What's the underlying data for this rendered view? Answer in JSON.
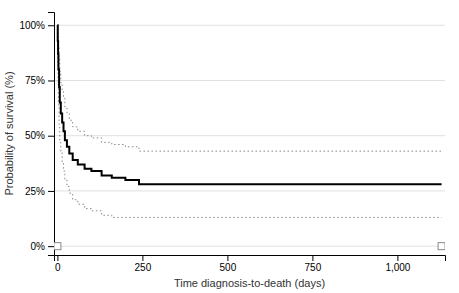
{
  "chart_data": {
    "type": "line",
    "xlabel": "Time diagnosis-to-death (days)",
    "ylabel": "Probability of survival (%)",
    "xlim": [
      -10,
      1140
    ],
    "ylim": [
      -0.04,
      1.06
    ],
    "xticks": [
      0,
      250,
      500,
      750,
      {
        "value": 1000,
        "label": "1,000"
      }
    ],
    "yticks": [
      {
        "value": 0.0,
        "label": "0%"
      },
      {
        "value": 0.25,
        "label": "25%"
      },
      {
        "value": 0.5,
        "label": "50%"
      },
      {
        "value": 0.75,
        "label": "75%"
      },
      {
        "value": 1.0,
        "label": "100%"
      }
    ],
    "grid": "y",
    "x": [
      0,
      1,
      2,
      3,
      5,
      7,
      10,
      14,
      18,
      22,
      28,
      35,
      45,
      60,
      80,
      100,
      130,
      160,
      200,
      240,
      280,
      1130
    ],
    "series": [
      {
        "type": "step",
        "color": "#888888",
        "line_style": "dotted",
        "values": [
          1.0,
          0.98,
          0.95,
          0.91,
          0.85,
          0.79,
          0.74,
          0.7,
          0.67,
          0.63,
          0.6,
          0.57,
          0.54,
          0.52,
          0.5,
          0.49,
          0.47,
          0.46,
          0.45,
          0.43,
          0.43,
          0.43
        ]
      },
      {
        "type": "step",
        "color": "#888888",
        "line_style": "dotted",
        "values": [
          1.0,
          0.83,
          0.73,
          0.64,
          0.55,
          0.48,
          0.43,
          0.38,
          0.34,
          0.3,
          0.27,
          0.24,
          0.21,
          0.19,
          0.17,
          0.16,
          0.14,
          0.13,
          0.13,
          0.13,
          0.13,
          0.13
        ]
      },
      {
        "type": "step",
        "color": "#000000",
        "line_style": "solid",
        "values": [
          1.0,
          0.93,
          0.87,
          0.8,
          0.72,
          0.65,
          0.6,
          0.56,
          0.52,
          0.48,
          0.45,
          0.42,
          0.39,
          0.37,
          0.35,
          0.34,
          0.32,
          0.31,
          0.3,
          0.28,
          0.28,
          0.28
        ]
      },
      {
        "type": "scatter",
        "color": "#888888",
        "marker": "square",
        "x": [
          0,
          1130
        ],
        "values": [
          0,
          0
        ]
      }
    ]
  }
}
